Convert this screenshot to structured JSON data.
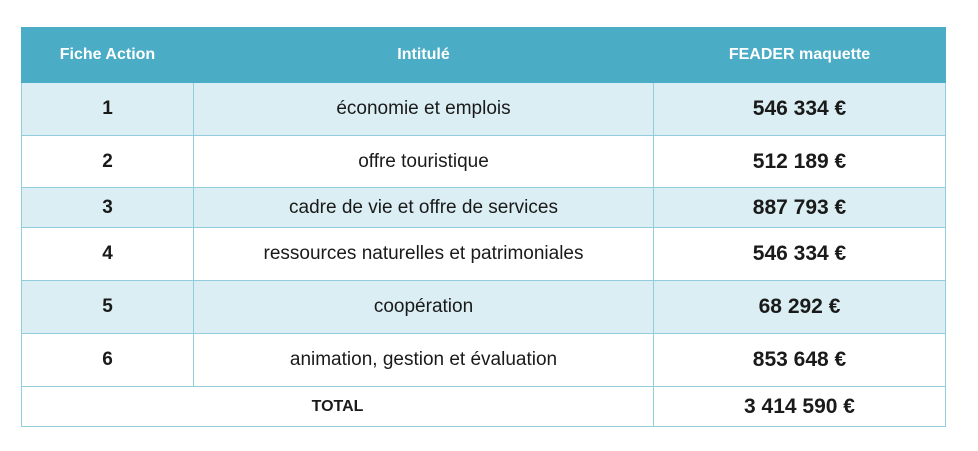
{
  "table": {
    "headers": [
      "Fiche Action",
      "Intitulé",
      "FEADER maquette"
    ],
    "rows": [
      {
        "num": "1",
        "label": "économie et emplois",
        "amount": "546 334 €"
      },
      {
        "num": "2",
        "label": "offre touristique",
        "amount": "512 189 €"
      },
      {
        "num": "3",
        "label": "cadre de vie et offre de services",
        "amount": "887 793 €"
      },
      {
        "num": "4",
        "label": "ressources naturelles et patrimoniales",
        "amount": "546 334 €"
      },
      {
        "num": "5",
        "label": "coopération",
        "amount": "68 292 €"
      },
      {
        "num": "6",
        "label": "animation, gestion et évaluation",
        "amount": "853 648 €"
      }
    ],
    "total": {
      "label": "TOTAL",
      "amount": "3 414 590 €"
    }
  },
  "colors": {
    "header_bg": "#4bacc6",
    "row_alt_bg": "#daeef3",
    "border": "#92cddc"
  }
}
